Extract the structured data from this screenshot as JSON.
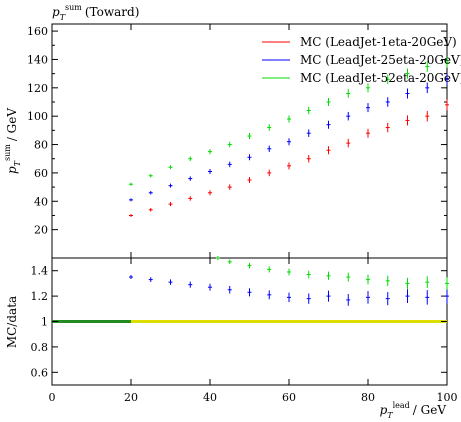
{
  "figure": {
    "title": "p_T^sum (Toward)",
    "title_main": "p",
    "title_sub": "T",
    "title_sup": "sum",
    "title_rest": "(Toward)"
  },
  "chart_data": [
    {
      "panel": "main",
      "type": "scatter",
      "ylabel": "p_T^sum / GeV",
      "ylabel_main": "p",
      "ylabel_sub": "T",
      "ylabel_sup": "sum",
      "ylabel_rest": "/ GeV",
      "xlim": [
        0,
        100
      ],
      "ylim": [
        0,
        165
      ],
      "yticks": [
        20,
        40,
        60,
        80,
        100,
        120,
        140,
        160
      ],
      "legend_position": "top-right",
      "series": [
        {
          "name": "MC (LeadJet-1eta-20GeV)",
          "color": "#ff0000",
          "x": [
            20,
            25,
            30,
            35,
            40,
            45,
            50,
            55,
            60,
            65,
            70,
            75,
            80,
            85,
            90,
            95,
            100
          ],
          "y": [
            30,
            34,
            38,
            42,
            46,
            50,
            55,
            60,
            65,
            70,
            76,
            81,
            88,
            92,
            97,
            100,
            108
          ]
        },
        {
          "name": "MC (LeadJet-25eta-20GeV)",
          "color": "#0000ff",
          "x": [
            20,
            25,
            30,
            35,
            40,
            45,
            50,
            55,
            60,
            65,
            70,
            75,
            80,
            85,
            90,
            95,
            100
          ],
          "y": [
            41,
            46,
            51,
            56,
            61,
            66,
            71,
            77,
            82,
            88,
            94,
            100,
            106,
            110,
            116,
            120,
            126
          ]
        },
        {
          "name": "MC (LeadJet-52eta-20GeV)",
          "color": "#00dd00",
          "x": [
            20,
            25,
            30,
            35,
            40,
            45,
            50,
            55,
            60,
            65,
            70,
            75,
            80,
            85,
            90,
            95,
            100
          ],
          "y": [
            52,
            58,
            64,
            70,
            75,
            80,
            86,
            92,
            98,
            104,
            110,
            116,
            120,
            126,
            130,
            135,
            138
          ]
        }
      ]
    },
    {
      "panel": "ratio",
      "type": "scatter",
      "xlabel": "p_T^lead / GeV",
      "xlabel_main": "p",
      "xlabel_sub": "T",
      "xlabel_sup": "lead",
      "xlabel_rest": "/ GeV",
      "ylabel": "MC/data",
      "xlim": [
        0,
        100
      ],
      "ylim": [
        0.5,
        1.5
      ],
      "xticks": [
        0,
        20,
        40,
        60,
        80,
        100
      ],
      "yticks": [
        0.6,
        0.8,
        1.0,
        1.2,
        1.4
      ],
      "ytick_labels": [
        "0.6",
        "0.8",
        "1",
        "1.2",
        "1.4"
      ],
      "reference_band": {
        "y": 1.0,
        "colors": [
          "#228b22",
          "#dddd00"
        ],
        "split_x": 20
      },
      "series": [
        {
          "name": "MC (LeadJet-25eta-20GeV)",
          "color": "#0000ff",
          "x": [
            20,
            25,
            30,
            35,
            40,
            45,
            50,
            55,
            60,
            65,
            70,
            75,
            80,
            85,
            90,
            95,
            100
          ],
          "y": [
            1.35,
            1.33,
            1.31,
            1.29,
            1.27,
            1.25,
            1.23,
            1.21,
            1.19,
            1.18,
            1.2,
            1.17,
            1.19,
            1.18,
            1.2,
            1.19,
            1.2
          ]
        },
        {
          "name": "MC (LeadJet-52eta-20GeV)",
          "color": "#00dd00",
          "x": [
            42,
            45,
            50,
            55,
            60,
            65,
            70,
            75,
            80,
            85,
            90,
            95,
            100
          ],
          "y": [
            1.5,
            1.47,
            1.44,
            1.41,
            1.39,
            1.37,
            1.36,
            1.35,
            1.33,
            1.32,
            1.3,
            1.31,
            1.3
          ]
        }
      ]
    }
  ]
}
